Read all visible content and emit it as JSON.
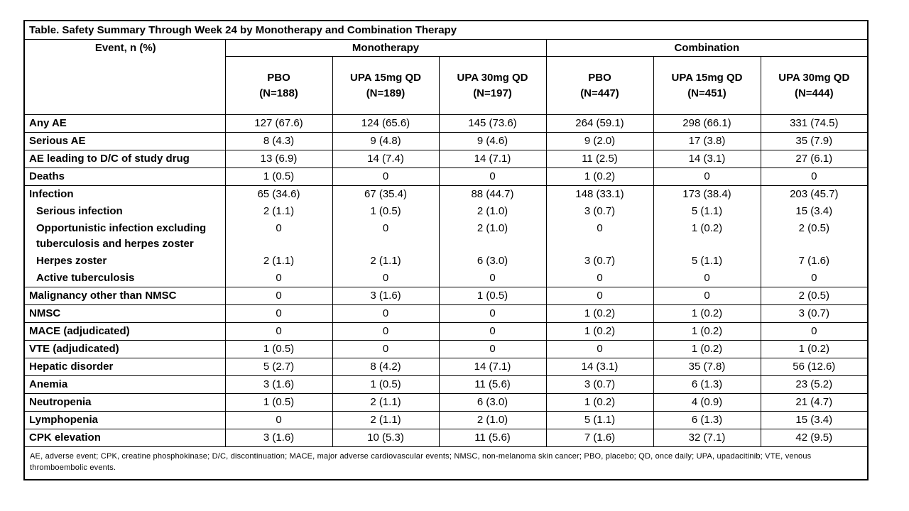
{
  "table": {
    "title": "Table. Safety Summary Through Week 24 by Monotherapy and Combination Therapy",
    "event_header": "Event, n (%)",
    "groups": [
      {
        "label": "Monotherapy"
      },
      {
        "label": "Combination"
      }
    ],
    "columns": [
      {
        "line1": "PBO",
        "line2": "(N=188)"
      },
      {
        "line1": "UPA 15mg QD",
        "line2": "(N=189)"
      },
      {
        "line1": "UPA 30mg QD",
        "line2": "(N=197)"
      },
      {
        "line1": "PBO",
        "line2": "(N=447)"
      },
      {
        "line1": "UPA 15mg QD",
        "line2": "(N=451)"
      },
      {
        "line1": "UPA 30mg QD",
        "line2": "(N=444)"
      }
    ],
    "rows": [
      {
        "label": "Any AE",
        "indent": false,
        "sub": false,
        "values": [
          "127 (67.6)",
          "124 (65.6)",
          "145 (73.6)",
          "264 (59.1)",
          "298 (66.1)",
          "331 (74.5)"
        ]
      },
      {
        "label": "Serious AE",
        "indent": false,
        "sub": false,
        "values": [
          "8 (4.3)",
          "9 (4.8)",
          "9 (4.6)",
          "9 (2.0)",
          "17 (3.8)",
          "35 (7.9)"
        ]
      },
      {
        "label": "AE leading to D/C of study drug",
        "indent": false,
        "sub": false,
        "values": [
          "13 (6.9)",
          "14 (7.4)",
          "14 (7.1)",
          "11 (2.5)",
          "14 (3.1)",
          "27 (6.1)"
        ]
      },
      {
        "label": "Deaths",
        "indent": false,
        "sub": false,
        "values": [
          "1 (0.5)",
          "0",
          "0",
          "1 (0.2)",
          "0",
          "0"
        ]
      },
      {
        "label": "Infection",
        "indent": false,
        "sub": false,
        "values": [
          "65 (34.6)",
          "67 (35.4)",
          "88 (44.7)",
          "148 (33.1)",
          "173 (38.4)",
          "203 (45.7)"
        ]
      },
      {
        "label": "Serious infection",
        "indent": true,
        "sub": true,
        "values": [
          "2 (1.1)",
          "1 (0.5)",
          "2 (1.0)",
          "3 (0.7)",
          "5 (1.1)",
          "15 (3.4)"
        ]
      },
      {
        "label": "Opportunistic infection excluding tuberculosis and herpes zoster",
        "indent": true,
        "sub": true,
        "values": [
          "0",
          "0",
          "2 (1.0)",
          "0",
          "1 (0.2)",
          "2 (0.5)"
        ]
      },
      {
        "label": "Herpes zoster",
        "indent": true,
        "sub": true,
        "values": [
          "2 (1.1)",
          "2 (1.1)",
          "6 (3.0)",
          "3 (0.7)",
          "5 (1.1)",
          "7 (1.6)"
        ]
      },
      {
        "label": "Active tuberculosis",
        "indent": true,
        "sub": true,
        "values": [
          "0",
          "0",
          "0",
          "0",
          "0",
          "0"
        ]
      },
      {
        "label": "Malignancy other than NMSC",
        "indent": false,
        "sub": false,
        "values": [
          "0",
          "3 (1.6)",
          "1 (0.5)",
          "0",
          "0",
          "2 (0.5)"
        ]
      },
      {
        "label": "NMSC",
        "indent": false,
        "sub": false,
        "values": [
          "0",
          "0",
          "0",
          "1 (0.2)",
          "1 (0.2)",
          "3 (0.7)"
        ]
      },
      {
        "label": "MACE (adjudicated)",
        "indent": false,
        "sub": false,
        "values": [
          "0",
          "0",
          "0",
          "1 (0.2)",
          "1 (0.2)",
          "0"
        ]
      },
      {
        "label": "VTE (adjudicated)",
        "indent": false,
        "sub": false,
        "values": [
          "1 (0.5)",
          "0",
          "0",
          "0",
          "1 (0.2)",
          "1 (0.2)"
        ]
      },
      {
        "label": "Hepatic disorder",
        "indent": false,
        "sub": false,
        "values": [
          "5 (2.7)",
          "8 (4.2)",
          "14 (7.1)",
          "14 (3.1)",
          "35 (7.8)",
          "56 (12.6)"
        ]
      },
      {
        "label": "Anemia",
        "indent": false,
        "sub": false,
        "values": [
          "3 (1.6)",
          "1 (0.5)",
          "11 (5.6)",
          "3 (0.7)",
          "6 (1.3)",
          "23 (5.2)"
        ]
      },
      {
        "label": "Neutropenia",
        "indent": false,
        "sub": false,
        "values": [
          "1 (0.5)",
          "2 (1.1)",
          "6 (3.0)",
          "1 (0.2)",
          "4 (0.9)",
          "21 (4.7)"
        ]
      },
      {
        "label": "Lymphopenia",
        "indent": false,
        "sub": false,
        "values": [
          "0",
          "2 (1.1)",
          "2 (1.0)",
          "5 (1.1)",
          "6 (1.3)",
          "15 (3.4)"
        ]
      },
      {
        "label": "CPK elevation",
        "indent": false,
        "sub": false,
        "values": [
          "3 (1.6)",
          "10 (5.3)",
          "11 (5.6)",
          "7 (1.6)",
          "32 (7.1)",
          "42 (9.5)"
        ]
      }
    ],
    "footnote": "AE, adverse event; CPK, creatine phosphokinase; D/C, discontinuation; MACE, major adverse cardiovascular events; NMSC, non-melanoma skin cancer; PBO, placebo; QD, once daily; UPA, upadacitinib; VTE, venous thromboembolic events."
  }
}
